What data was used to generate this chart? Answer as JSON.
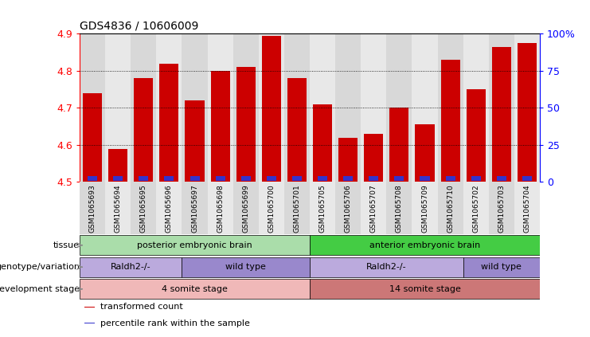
{
  "title": "GDS4836 / 10606009",
  "samples": [
    "GSM1065693",
    "GSM1065694",
    "GSM1065695",
    "GSM1065696",
    "GSM1065697",
    "GSM1065698",
    "GSM1065699",
    "GSM1065700",
    "GSM1065701",
    "GSM1065705",
    "GSM1065706",
    "GSM1065707",
    "GSM1065708",
    "GSM1065709",
    "GSM1065710",
    "GSM1065702",
    "GSM1065703",
    "GSM1065704"
  ],
  "bar_heights": [
    4.74,
    4.59,
    4.78,
    4.82,
    4.72,
    4.8,
    4.81,
    4.895,
    4.78,
    4.71,
    4.62,
    4.63,
    4.7,
    4.655,
    4.83,
    4.75,
    4.865,
    4.875
  ],
  "percentile_heights": [
    0.012,
    0.012,
    0.013,
    0.013,
    0.012,
    0.013,
    0.013,
    0.013,
    0.012,
    0.012,
    0.012,
    0.012,
    0.012,
    0.012,
    0.013,
    0.012,
    0.013,
    0.013
  ],
  "bar_bottom": 4.5,
  "ylim_min": 4.5,
  "ylim_max": 4.9,
  "bar_color": "#cc0000",
  "percentile_color": "#3333cc",
  "bg_color": "#ffffff",
  "col_bg_even": "#d8d8d8",
  "col_bg_odd": "#e8e8e8",
  "tissue_groups": [
    {
      "label": "posterior embryonic brain",
      "start": 0,
      "end": 9,
      "color": "#aaddaa"
    },
    {
      "label": "anterior embryonic brain",
      "start": 9,
      "end": 18,
      "color": "#44cc44"
    }
  ],
  "genotype_groups": [
    {
      "label": "Raldh2-/-",
      "start": 0,
      "end": 4,
      "color": "#bbaadd"
    },
    {
      "label": "wild type",
      "start": 4,
      "end": 9,
      "color": "#9988cc"
    },
    {
      "label": "Raldh2-/-",
      "start": 9,
      "end": 15,
      "color": "#bbaadd"
    },
    {
      "label": "wild type",
      "start": 15,
      "end": 18,
      "color": "#9988cc"
    }
  ],
  "stage_groups": [
    {
      "label": "4 somite stage",
      "start": 0,
      "end": 9,
      "color": "#f0b8b8"
    },
    {
      "label": "14 somite stage",
      "start": 9,
      "end": 18,
      "color": "#cc7777"
    }
  ],
  "left_yticks": [
    4.5,
    4.6,
    4.7,
    4.8,
    4.9
  ],
  "right_ytick_labels": [
    "0",
    "25",
    "50",
    "75",
    "100%"
  ],
  "right_ytick_positions": [
    4.5,
    4.6,
    4.7,
    4.8,
    4.9
  ],
  "row_labels": [
    "tissue",
    "genotype/variation",
    "development stage"
  ],
  "legend_items": [
    {
      "label": "transformed count",
      "color": "#cc0000"
    },
    {
      "label": "percentile rank within the sample",
      "color": "#3333cc"
    }
  ]
}
